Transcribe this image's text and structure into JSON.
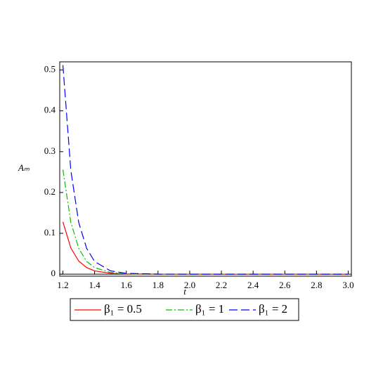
{
  "chart_data": {
    "type": "line",
    "x_label": "t",
    "y_label": "Aₘ",
    "x": [
      1.2,
      1.25,
      1.3,
      1.35,
      1.4,
      1.5,
      1.6,
      1.8,
      2.0,
      2.2,
      2.4,
      2.6,
      2.8,
      3.0
    ],
    "series": [
      {
        "name": "β₁ = 0.5",
        "color": "#ff0000",
        "style": "solid",
        "values": [
          0.128,
          0.064,
          0.032,
          0.016,
          0.008,
          0.002,
          0.0005,
          0,
          0,
          0,
          0,
          0,
          0,
          0
        ]
      },
      {
        "name": "β₁ = 1",
        "color": "#00c000",
        "style": "dashdot",
        "values": [
          0.256,
          0.127,
          0.063,
          0.031,
          0.016,
          0.004,
          0.001,
          0,
          0,
          0,
          0,
          0,
          0,
          0
        ]
      },
      {
        "name": "β₁ = 2",
        "color": "#0000ff",
        "style": "dash",
        "values": [
          0.512,
          0.254,
          0.126,
          0.063,
          0.031,
          0.008,
          0.002,
          0.0001,
          0,
          0,
          0,
          0,
          0,
          0
        ]
      }
    ],
    "xlim": [
      1.18,
      3.02
    ],
    "ylim": [
      -0.005,
      0.52
    ],
    "xticks": [
      1.2,
      1.4,
      1.6,
      1.8,
      {
        "value": 2.0,
        "label": "2.0"
      },
      2.2,
      2.4,
      2.6,
      2.8,
      {
        "value": 3.0,
        "label": "3.0"
      }
    ],
    "yticks": [
      0,
      0.1,
      0.2,
      0.3,
      0.4,
      0.5
    ],
    "legend": "bottom"
  }
}
